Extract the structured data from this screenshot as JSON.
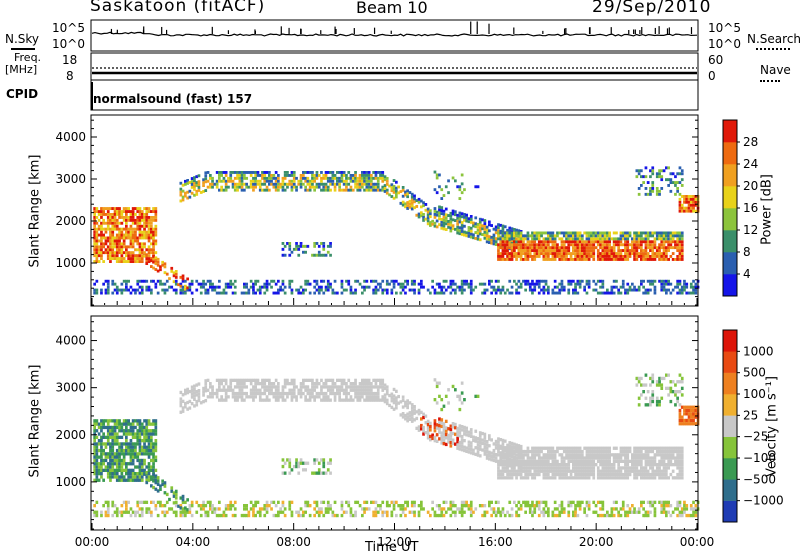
{
  "header": {
    "station": "Saskatoon (fitACF)",
    "beam": "Beam 10",
    "date": "29/Sep/2010"
  },
  "top_panels": {
    "nsky_label": "N.Sky",
    "nsky_ticks": [
      "10^5",
      "10^0"
    ],
    "nsearch_label": "N.Search",
    "nsearch_ticks": [
      "10^5",
      "10^0"
    ],
    "freq_label_1": "Freq.",
    "freq_label_2": "[MHz]",
    "freq_ticks": [
      "18",
      "8"
    ],
    "nave_label": "Nave",
    "nave_ticks": [
      "60",
      "0"
    ],
    "cpid_label": "CPID",
    "cpid_text": "normalsound (fast) 157"
  },
  "chart_data": [
    {
      "type": "heatmap",
      "ylabel": "Slant Range [km]",
      "yticks": [
        "1000",
        "2000",
        "3000",
        "4000"
      ],
      "ylim": [
        0,
        4500
      ],
      "xlim": [
        0,
        24
      ],
      "colorbar_label": "Power [dB]",
      "colorbar_ticks": [
        "4",
        "8",
        "12",
        "16",
        "20",
        "24",
        "28"
      ],
      "colors": [
        "#1515e8",
        "#2a5fb0",
        "#3a8f6a",
        "#8cc43c",
        "#e8d21a",
        "#f0a020",
        "#ee6a10",
        "#e01808"
      ]
    },
    {
      "type": "heatmap",
      "ylabel": "Slant Range [km]",
      "yticks": [
        "1000",
        "2000",
        "3000",
        "4000"
      ],
      "ylim": [
        0,
        4500
      ],
      "xlim": [
        0,
        24
      ],
      "xlabel": "Time UT",
      "xticks": [
        "00:00",
        "04:00",
        "08:00",
        "12:00",
        "16:00",
        "20:00",
        "00:00"
      ],
      "colorbar_label": "Velocity [m s⁻¹]",
      "colorbar_ticks": [
        "1000",
        "500",
        "100",
        "25",
        "−25",
        "−100",
        "−500",
        "−1000"
      ],
      "colors": [
        "#1f3cb4",
        "#2f6e8c",
        "#3a9a52",
        "#86c43a",
        "#c8c8c8",
        "#f0b030",
        "#ee8020",
        "#e84a12",
        "#dd1408"
      ]
    }
  ]
}
